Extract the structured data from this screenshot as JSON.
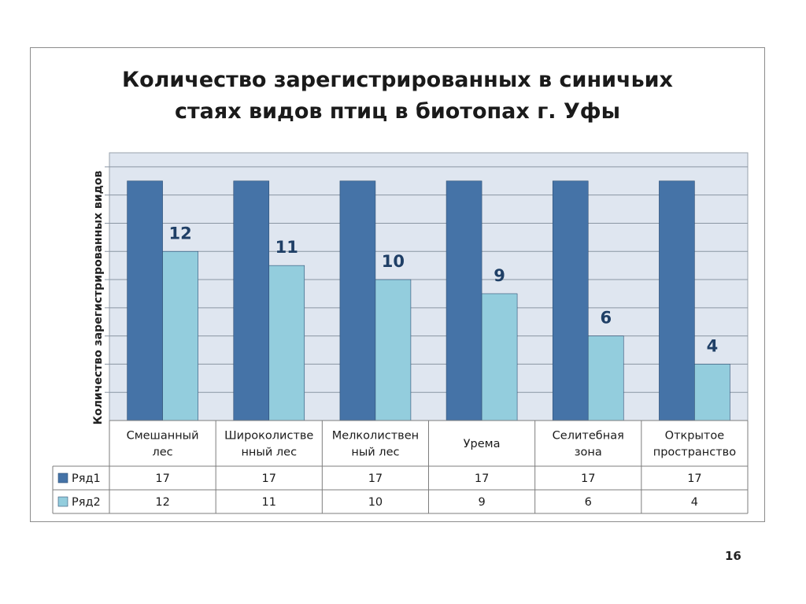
{
  "page_number": "16",
  "chart_data": {
    "type": "bar",
    "title_lines": [
      "Количество зарегистрированных в синичьих",
      "стаях видов птиц в биотопах г. Уфы"
    ],
    "ylabel": "Количество зарегистрированных видов",
    "xlabel": "",
    "categories": [
      [
        "Смешанный",
        "лес"
      ],
      [
        "Широколистве",
        "нный лес"
      ],
      [
        "Мелколиствен",
        "ный лес"
      ],
      [
        "Урема"
      ],
      [
        "Селитебная",
        "зона"
      ],
      [
        "Открытое",
        "пространство"
      ]
    ],
    "series": [
      {
        "name": "Ряд1",
        "values": [
          17,
          17,
          17,
          17,
          17,
          17
        ],
        "color": "#4573a7",
        "data_labels": false
      },
      {
        "name": "Ряд2",
        "values": [
          12,
          11,
          10,
          9,
          6,
          4
        ],
        "color": "#93cddd",
        "data_labels": true
      }
    ],
    "ylim": [
      0,
      19
    ],
    "y_tick_step": 2,
    "y_tick_labels_visible": false,
    "grid": true,
    "legend": "data-table",
    "data_table": true,
    "plot_background": "#dfe6f0",
    "data_label_color": "#1f3f66"
  }
}
